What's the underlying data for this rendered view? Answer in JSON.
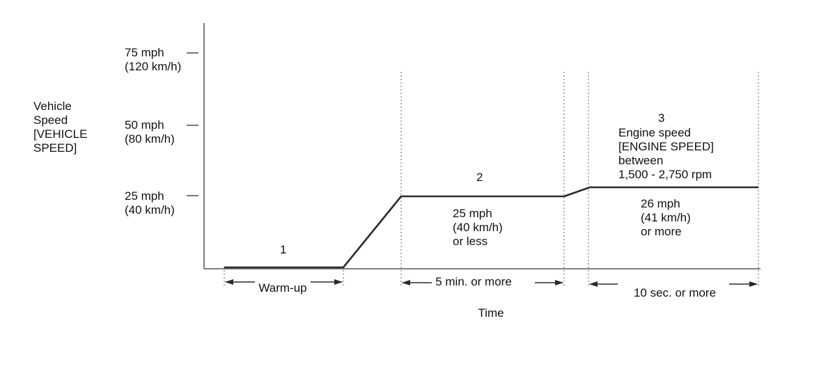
{
  "y_axis": {
    "label_lines": [
      "Vehicle",
      "Speed",
      "[VEHICLE",
      "SPEED]"
    ],
    "ticks": [
      {
        "line1": "75 mph",
        "line2": "(120 km/h)"
      },
      {
        "line1": "50 mph",
        "line2": "(80 km/h)"
      },
      {
        "line1": "25 mph",
        "line2": "(40 km/h)"
      }
    ]
  },
  "x_axis": {
    "label": "Time"
  },
  "phases": [
    {
      "number": "1",
      "duration_label": "Warm-up"
    },
    {
      "number": "2",
      "condition_lines": [
        "25 mph",
        "(40 km/h)",
        "or less"
      ],
      "duration_label": "5 min. or more"
    },
    {
      "number": "3",
      "condition_lines": [
        "Engine speed",
        "[ENGINE SPEED]",
        "between",
        "1,500 - 2,750 rpm"
      ],
      "speed_lines": [
        "26 mph",
        "(41 km/h)",
        "or more"
      ],
      "duration_label": "10 sec. or more"
    }
  ],
  "colors": {
    "line": "#2a2a2a",
    "axis": "#555555",
    "tick": "#777777",
    "guide": "#666666"
  }
}
